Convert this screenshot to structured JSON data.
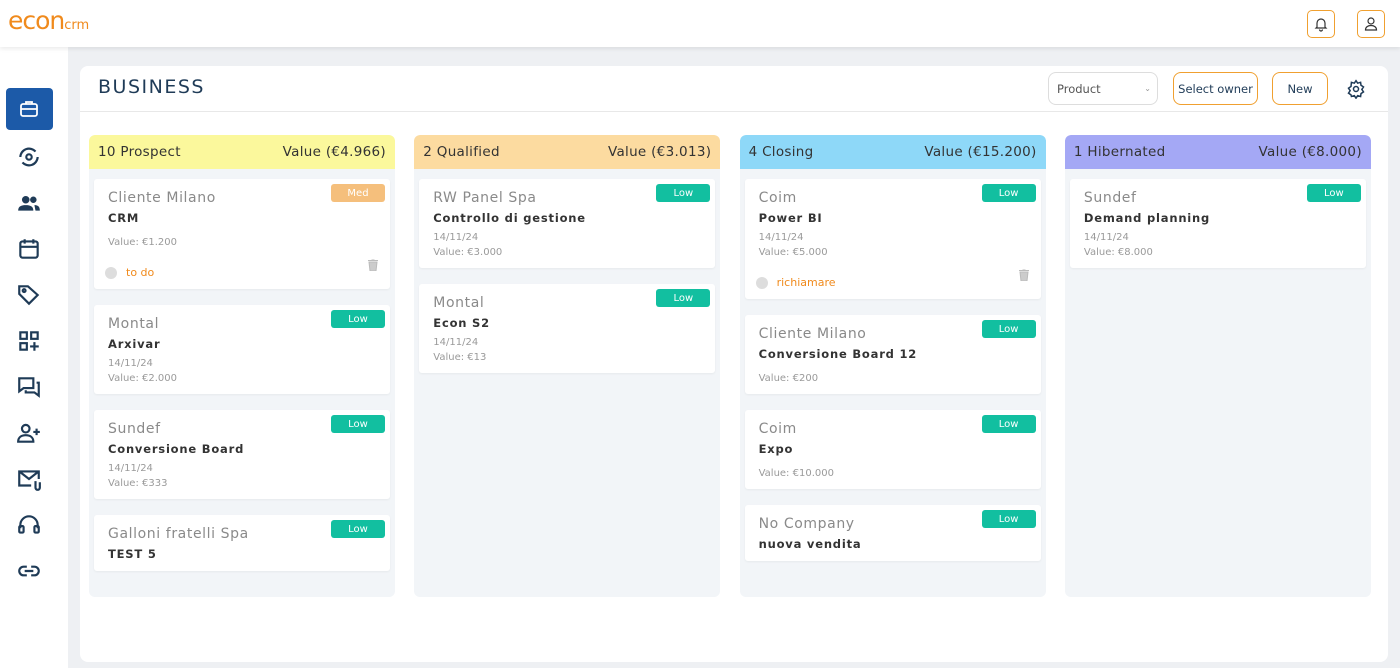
{
  "header": {
    "logo_main": "econ",
    "logo_sub": "crm"
  },
  "page": {
    "title": "BUSINESS",
    "filter": "Product",
    "select_owner": "Select owner",
    "new": "New"
  },
  "columns": [
    {
      "label": "10 Prospect",
      "value": "Value (€4.966)",
      "color": "#fbf89c",
      "cards": [
        {
          "company": "Cliente Milano",
          "deal": "CRM",
          "value": "Value: €1.200",
          "priority": "Med",
          "task": "to do"
        },
        {
          "company": "Montal",
          "deal": "Arxivar",
          "date": "14/11/24",
          "value": "Value: €2.000",
          "priority": "Low"
        },
        {
          "company": "Sundef",
          "deal": "Conversione Board",
          "date": "14/11/24",
          "value": "Value: €333",
          "priority": "Low"
        },
        {
          "company": "Galloni fratelli Spa",
          "deal": "TEST 5",
          "priority": "Low"
        }
      ]
    },
    {
      "label": "2 Qualified",
      "value": "Value (€3.013)",
      "color": "#fcdba0",
      "cards": [
        {
          "company": "RW Panel Spa",
          "deal": "Controllo di gestione",
          "date": "14/11/24",
          "value": "Value: €3.000",
          "priority": "Low"
        },
        {
          "company": "Montal",
          "deal": "Econ S2",
          "date": "14/11/24",
          "value": "Value: €13",
          "priority": "Low"
        }
      ]
    },
    {
      "label": "4 Closing",
      "value": "Value (€15.200)",
      "color": "#8ed8f8",
      "cards": [
        {
          "company": "Coim",
          "deal": "Power BI",
          "date": "14/11/24",
          "value": "Value: €5.000",
          "priority": "Low",
          "task": "richiamare"
        },
        {
          "company": "Cliente Milano",
          "deal": "Conversione Board 12",
          "value": "Value: €200",
          "priority": "Low"
        },
        {
          "company": "Coim",
          "deal": "Expo",
          "value": "Value: €10.000",
          "priority": "Low"
        },
        {
          "company": "No Company",
          "deal": "nuova vendita",
          "priority": "Low"
        }
      ]
    },
    {
      "label": "1 Hibernated",
      "value": "Value (€8.000)",
      "color": "#a4a8f5",
      "cards": [
        {
          "company": "Sundef",
          "deal": "Demand planning",
          "date": "14/11/24",
          "value": "Value: €8.000",
          "priority": "Low"
        }
      ]
    }
  ]
}
